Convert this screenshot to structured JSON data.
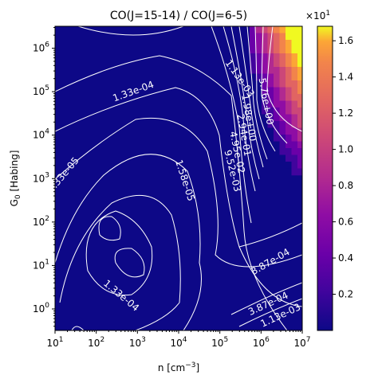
{
  "chart_data": {
    "type": "heatmap",
    "title": "CO(J=15-14) / CO(J=6-5)",
    "xlabel_prefix": "n [cm",
    "xlabel_sup": "−3",
    "xlabel_suffix": "]",
    "ylabel_main": "G",
    "ylabel_sub": "0",
    "ylabel_rest": " [Habing]",
    "x_scale": "log",
    "y_scale": "log",
    "xlim": [
      10,
      10000000
    ],
    "ylim": [
      0.32,
      3200000
    ],
    "x_ticks": [
      {
        "value": 10,
        "base": "10",
        "exp": "1"
      },
      {
        "value": 100,
        "base": "10",
        "exp": "2"
      },
      {
        "value": 1000,
        "base": "10",
        "exp": "3"
      },
      {
        "value": 10000,
        "base": "10",
        "exp": "4"
      },
      {
        "value": 100000,
        "base": "10",
        "exp": "5"
      },
      {
        "value": 1000000,
        "base": "10",
        "exp": "6"
      },
      {
        "value": 10000000,
        "base": "10",
        "exp": "7"
      }
    ],
    "y_ticks": [
      {
        "value": 1,
        "base": "10",
        "exp": "0"
      },
      {
        "value": 10,
        "base": "10",
        "exp": "1"
      },
      {
        "value": 100,
        "base": "10",
        "exp": "2"
      },
      {
        "value": 1000,
        "base": "10",
        "exp": "3"
      },
      {
        "value": 10000,
        "base": "10",
        "exp": "4"
      },
      {
        "value": 100000,
        "base": "10",
        "exp": "5"
      },
      {
        "value": 1000000,
        "base": "10",
        "exp": "6"
      }
    ],
    "colormap": "plasma",
    "colorbar": {
      "range": [
        0.0,
        1.68
      ],
      "multiplier_base": "×10",
      "multiplier_exp": "1",
      "ticks": [
        "0.2",
        "0.4",
        "0.6",
        "0.8",
        "1.0",
        "1.2",
        "1.4",
        "1.6"
      ]
    },
    "contour_labels": [
      {
        "text": "1.13e-03",
        "x": 300000,
        "y": 200000,
        "angle": 55,
        "note": "upper"
      },
      {
        "text": "1.33e-04",
        "x": 800,
        "y": 100000,
        "angle": -20
      },
      {
        "text": "5.76e+00",
        "x": 1300000,
        "y": 60000,
        "angle": 80
      },
      {
        "text": "1.98e+00",
        "x": 500000,
        "y": 25000,
        "angle": 80
      },
      {
        "text": "4.95e-02",
        "x": 260000,
        "y": 4000,
        "angle": 78
      },
      {
        "text": "2.94e-01",
        "x": 380000,
        "y": 10000,
        "angle": 80
      },
      {
        "text": "9.52e-03",
        "x": 200000,
        "y": 1500,
        "angle": 76
      },
      {
        "text": "1.58e-05",
        "x": 14000,
        "y": 900,
        "angle": 72
      },
      {
        "text": "1.33e-05",
        "x": 16,
        "y": 1200,
        "angle": -50
      },
      {
        "text": "1.33e-04",
        "x": 400,
        "y": 2,
        "angle": 40
      },
      {
        "text": "3.87e-04",
        "x": 1700000,
        "y": 12,
        "angle": -30
      },
      {
        "text": "3.87e-04",
        "x": 1500000,
        "y": 1.3,
        "angle": -25
      },
      {
        "text": "1.13e-03",
        "x": 3000000,
        "y": 0.7,
        "angle": -25
      }
    ],
    "grid": false
  }
}
